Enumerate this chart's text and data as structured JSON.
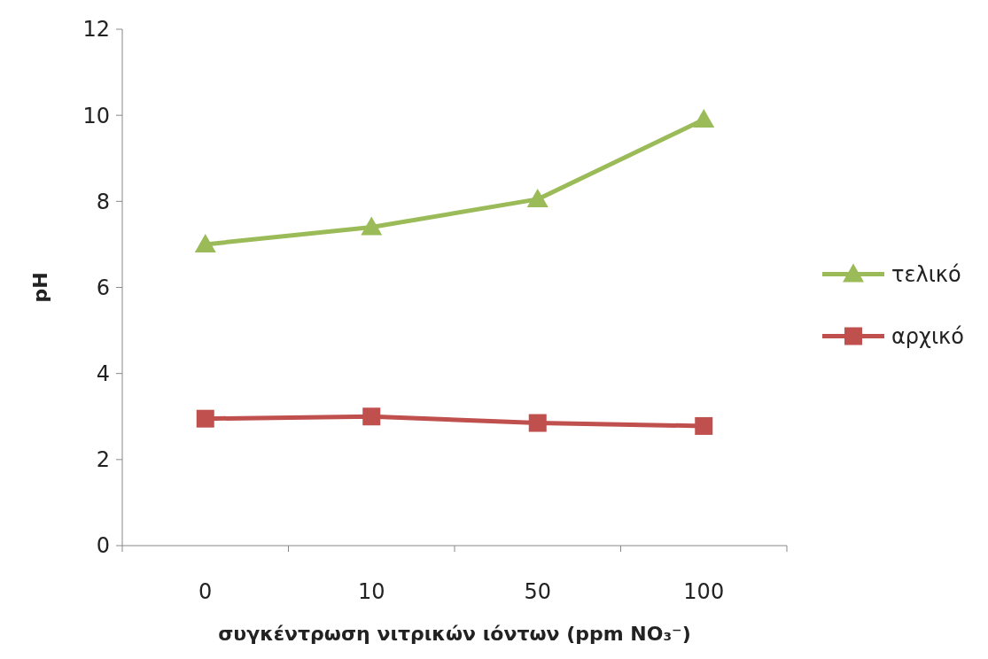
{
  "chart_data": {
    "type": "line",
    "xlabel": "συγκέντρωση νιτρικών ιόντων (ppm    NO₃⁻)",
    "ylabel": "pH",
    "categories": [
      "0",
      "10",
      "50",
      "100"
    ],
    "series": [
      {
        "name": "τελικό",
        "color": "#9bbb59",
        "marker": "triangle",
        "values": [
          7.0,
          7.4,
          8.05,
          9.9
        ]
      },
      {
        "name": "αρχικό",
        "color": "#c0504d",
        "marker": "square",
        "values": [
          2.95,
          3.0,
          2.85,
          2.78
        ]
      }
    ],
    "ylim": [
      0,
      12
    ],
    "yticks": [
      0,
      2,
      4,
      6,
      8,
      10,
      12
    ],
    "grid": false,
    "legend": "right"
  }
}
